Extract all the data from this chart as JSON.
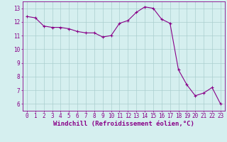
{
  "x": [
    0,
    1,
    2,
    3,
    4,
    5,
    6,
    7,
    8,
    9,
    10,
    11,
    12,
    13,
    14,
    15,
    16,
    17,
    18,
    19,
    20,
    21,
    22,
    23
  ],
  "y": [
    12.4,
    12.3,
    11.7,
    11.6,
    11.6,
    11.5,
    11.3,
    11.2,
    11.2,
    10.9,
    11.0,
    11.9,
    12.1,
    12.7,
    13.1,
    13.0,
    12.2,
    11.9,
    8.5,
    7.4,
    6.6,
    6.8,
    7.2,
    6.0
  ],
  "line_color": "#880088",
  "marker": "+",
  "marker_size": 3,
  "bg_color": "#d5efef",
  "grid_color": "#aacece",
  "xlabel": "Windchill (Refroidissement éolien,°C)",
  "xlabel_color": "#880088",
  "tick_color": "#880088",
  "spine_color": "#880088",
  "ylim": [
    5.5,
    13.5
  ],
  "xlim": [
    -0.5,
    23.5
  ],
  "yticks": [
    6,
    7,
    8,
    9,
    10,
    11,
    12,
    13
  ],
  "xticks": [
    0,
    1,
    2,
    3,
    4,
    5,
    6,
    7,
    8,
    9,
    10,
    11,
    12,
    13,
    14,
    15,
    16,
    17,
    18,
    19,
    20,
    21,
    22,
    23
  ],
  "tick_fontsize": 5.5,
  "xlabel_fontsize": 6.5,
  "linewidth": 0.8,
  "marker_linewidth": 0.8
}
